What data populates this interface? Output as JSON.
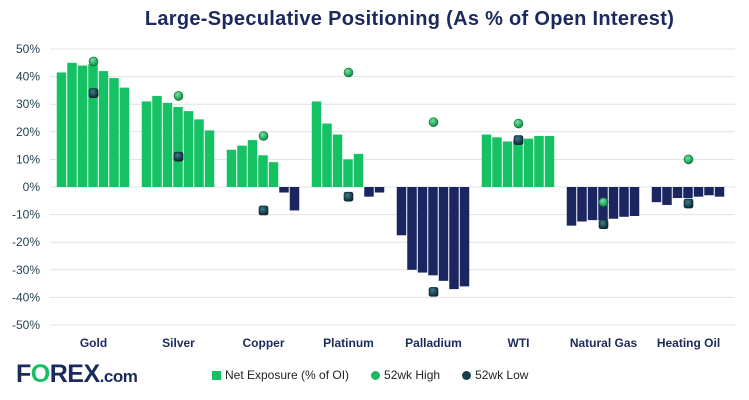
{
  "chart_data": {
    "type": "bar",
    "title": "Large-Speculative Positioning (As % of Open Interest)",
    "categories": [
      "Gold",
      "Silver",
      "Copper",
      "Platinum",
      "Palladium",
      "WTI",
      "Natural Gas",
      "Heating Oil"
    ],
    "ylim": [
      -50,
      50
    ],
    "yticks": [
      "50%",
      "40%",
      "30%",
      "20%",
      "10%",
      "0%",
      "-10%",
      "-20%",
      "-30%",
      "-40%",
      "-50%"
    ],
    "ytick_values": [
      50,
      40,
      30,
      20,
      10,
      0,
      -10,
      -20,
      -30,
      -40,
      -50
    ],
    "grid": true,
    "legend_placement": "bottom",
    "series": [
      {
        "name": "Net Exposure (% of OI)",
        "type": "bar",
        "values": [
          [
            41.5,
            45,
            44,
            44.5,
            42,
            39.5,
            36
          ],
          [
            31,
            33,
            30.5,
            29,
            27.5,
            24.5,
            20.5
          ],
          [
            13.5,
            15,
            17,
            11.5,
            9,
            -2,
            -8.5
          ],
          [
            31,
            23,
            19,
            10,
            12,
            -3.5,
            -2
          ],
          [
            -17.5,
            -30,
            -31,
            -32,
            -34,
            -37,
            -36
          ],
          [
            19,
            18,
            16.5,
            17,
            17.5,
            18.5,
            18.5
          ],
          [
            -14,
            -12.5,
            -12,
            -12,
            -11.5,
            -10.8,
            -10.5
          ],
          [
            -5.5,
            -6.5,
            -4,
            -4,
            -3.5,
            -3,
            -3.5
          ]
        ]
      },
      {
        "name": "52wk High",
        "type": "marker",
        "values": [
          45.5,
          33,
          18.5,
          41.5,
          23.5,
          23,
          -5.5,
          10
        ]
      },
      {
        "name": "52wk Low",
        "type": "marker",
        "values": [
          34,
          11,
          -8.5,
          -3.5,
          -38,
          17,
          -13.5,
          -6
        ]
      }
    ],
    "colors": {
      "positive": "#14c163",
      "negative": "#1b2660",
      "high": "#1db862",
      "low": "#163e4f",
      "grid": "#dfe3e6",
      "axis_text": "#1f3f4f"
    }
  },
  "logo": {
    "a": "F",
    "o": "O",
    "b": "REX",
    "com": ".com"
  }
}
